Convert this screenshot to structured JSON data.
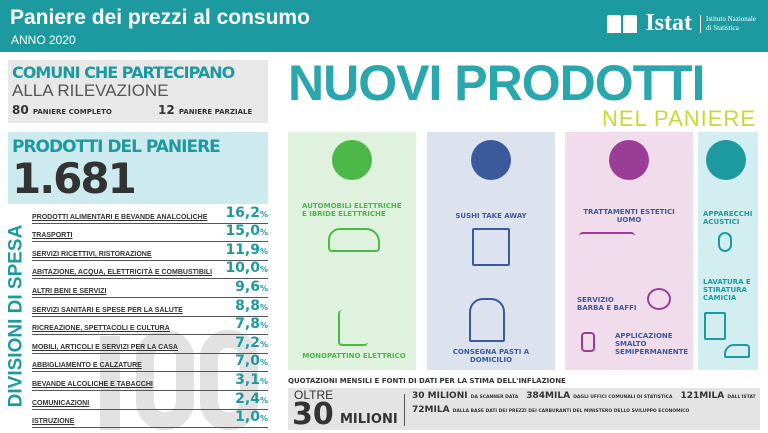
{
  "header": {
    "title": "Paniere dei prezzi al consumo",
    "subtitle": "ANNO 2020",
    "logo_name": "Istat",
    "logo_sub": "Istituto Nazionale di Statistica"
  },
  "comuni": {
    "title": "COMUNI CHE PARTECIPANO",
    "subtitle": "ALLA RILEVAZIONE",
    "complete_count": "80",
    "complete_label": "PANIERE COMPLETO",
    "partial_count": "12",
    "partial_label": "PANIERE PARZIALE"
  },
  "prodotti": {
    "title": "PRODOTTI DEL PANIERE",
    "count": "1.681"
  },
  "divisioni": {
    "label": "DIVISIONI DI SPESA",
    "watermark": "100",
    "items": [
      {
        "label": "PRODOTTI ALIMENTARI E BEVANDE ANALCOLICHE",
        "value": "16,2"
      },
      {
        "label": "TRASPORTI",
        "value": "15,0"
      },
      {
        "label": "SERVIZI RICETTIVI, RISTORAZIONE",
        "value": "11,9"
      },
      {
        "label": "ABITAZIONE, ACQUA, ELETTRICITÀ E COMBUSTIBILI",
        "value": "10,0"
      },
      {
        "label": "ALTRI BENI E SERVIZI",
        "value": "9,6"
      },
      {
        "label": "SERVIZI SANITARI E SPESE PER LA SALUTE",
        "value": "8,8"
      },
      {
        "label": "RICREAZIONE, SPETTACOLI E CULTURA",
        "value": "7,8"
      },
      {
        "label": "MOBILI, ARTICOLI E SERVIZI PER LA CASA",
        "value": "7,2"
      },
      {
        "label": "ABBIGLIAMENTO E CALZATURE",
        "value": "7,0"
      },
      {
        "label": "BEVANDE ALCOLICHE E TABACCHI",
        "value": "3,1"
      },
      {
        "label": "COMUNICAZIONI",
        "value": "2,4"
      },
      {
        "label": "ISTRUZIONE",
        "value": "1,0"
      }
    ],
    "unit": "%"
  },
  "nuovi": {
    "title": "NUOVI PRODOTTI",
    "subtitle": "NEL PANIERE",
    "green": {
      "color": "#4cb848",
      "bg": "#def2dd",
      "items": [
        "AUTOMOBILI ELETTRICHE E IBRIDE ELETTRICHE",
        "MONOPATTINO ELETTRICO"
      ]
    },
    "blue": {
      "color": "#3b5a9a",
      "bg": "#dde3ee",
      "items": [
        "SUSHI TAKE AWAY",
        "CONSEGNA PASTI A DOMICILIO"
      ]
    },
    "pink": {
      "color": "#9b3c97",
      "bg": "#f1dcec",
      "items": [
        "TRATTAMENTI ESTETICI UOMO",
        "SERVIZIO BARBA E BAFFI",
        "APPLICAZIONE SMALTO SEMIPERMANENTE"
      ]
    },
    "teal": {
      "color": "#1d9aa0",
      "bg": "#d3eef0",
      "items": [
        "APPARECCHI ACUSTICI",
        "LAVATURA E STIRATURA CAMICIA"
      ]
    }
  },
  "quotazioni": {
    "title": "QUOTAZIONI MENSILI E FONTI DI DATI PER LA STIMA DELL'INFLAZIONE",
    "oltre": "OLTRE",
    "total": "30",
    "total_unit": "MILIONI",
    "sources": [
      {
        "value": "30 MILIONI",
        "label": "DA SCANNER DATA"
      },
      {
        "value": "384MILA",
        "label": "DAGLI UFFICI COMUNALI DI STATISTICA"
      },
      {
        "value": "121MILA",
        "label": "DALL'ISTAT"
      },
      {
        "value": "72MILA",
        "label": "DALLA BASE DATI DEI PREZZI DEI CARBURANTI DEL MINISTERO DELLO SVILUPPO ECONOMICO"
      }
    ]
  }
}
